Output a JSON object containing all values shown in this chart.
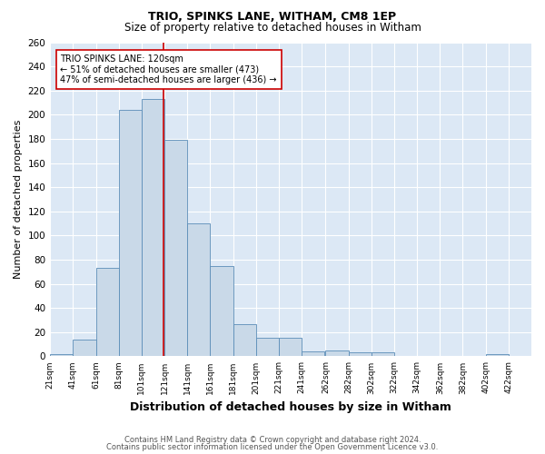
{
  "title": "TRIO, SPINKS LANE, WITHAM, CM8 1EP",
  "subtitle": "Size of property relative to detached houses in Witham",
  "xlabel": "Distribution of detached houses by size in Witham",
  "ylabel": "Number of detached properties",
  "footnote1": "Contains HM Land Registry data © Crown copyright and database right 2024.",
  "footnote2": "Contains public sector information licensed under the Open Government Licence v3.0.",
  "bar_edges": [
    21,
    41,
    61,
    81,
    101,
    121,
    141,
    161,
    181,
    201,
    221,
    241,
    262,
    282,
    302,
    322,
    342,
    362,
    382,
    402,
    422
  ],
  "bar_heights": [
    2,
    14,
    73,
    204,
    213,
    179,
    110,
    75,
    27,
    15,
    15,
    4,
    5,
    3,
    3,
    0,
    0,
    0,
    0,
    2,
    0
  ],
  "bar_color": "#c9d9e8",
  "bar_edge_color": "#5b8db8",
  "vline_x": 120,
  "vline_color": "#cc0000",
  "annotation_text": "TRIO SPINKS LANE: 120sqm\n← 51% of detached houses are smaller (473)\n47% of semi-detached houses are larger (436) →",
  "annotation_box_color": "white",
  "annotation_box_edge_color": "#cc0000",
  "ylim": [
    0,
    260
  ],
  "yticks": [
    0,
    20,
    40,
    60,
    80,
    100,
    120,
    140,
    160,
    180,
    200,
    220,
    240,
    260
  ],
  "tick_labels": [
    "21sqm",
    "41sqm",
    "61sqm",
    "81sqm",
    "101sqm",
    "121sqm",
    "141sqm",
    "161sqm",
    "181sqm",
    "201sqm",
    "221sqm",
    "241sqm",
    "262sqm",
    "282sqm",
    "302sqm",
    "322sqm",
    "342sqm",
    "362sqm",
    "382sqm",
    "402sqm",
    "422sqm"
  ],
  "background_color": "#ffffff",
  "plot_bg_color": "#dce8f5",
  "grid_color": "#ffffff",
  "title_fontsize": 9,
  "subtitle_fontsize": 8.5,
  "xlabel_fontsize": 9,
  "ylabel_fontsize": 8,
  "tick_fontsize": 6.5,
  "ytick_fontsize": 7.5,
  "annotation_fontsize": 7,
  "footnote_fontsize": 6
}
